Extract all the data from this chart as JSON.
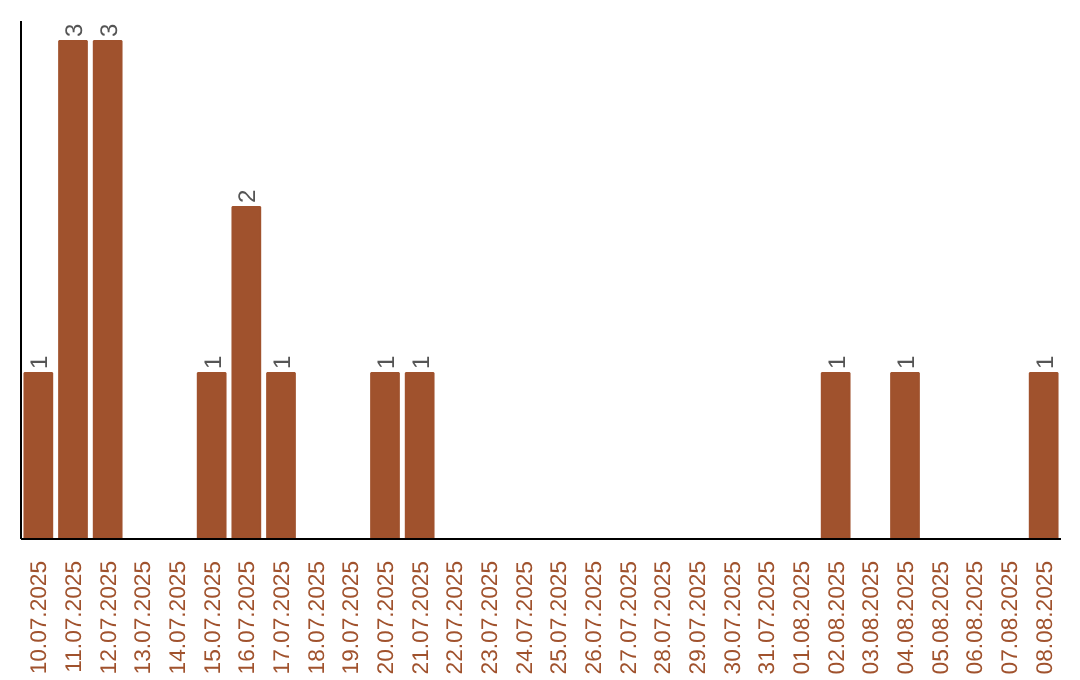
{
  "chart_data": {
    "type": "bar",
    "categories": [
      "10.07.2025",
      "11.07.2025",
      "12.07.2025",
      "13.07.2025",
      "14.07.2025",
      "15.07.2025",
      "16.07.2025",
      "17.07.2025",
      "18.07.2025",
      "19.07.2025",
      "20.07.2025",
      "21.07.2025",
      "22.07.2025",
      "23.07.2025",
      "24.07.2025",
      "25.07.2025",
      "26.07.2025",
      "27.07.2025",
      "28.07.2025",
      "29.07.2025",
      "30.07.2025",
      "31.07.2025",
      "01.08.2025",
      "02.08.2025",
      "03.08.2025",
      "04.08.2025",
      "05.08.2025",
      "06.08.2025",
      "07.08.2025",
      "08.08.2025"
    ],
    "values": [
      1,
      3,
      3,
      0,
      0,
      1,
      2,
      1,
      0,
      0,
      1,
      1,
      0,
      0,
      0,
      0,
      0,
      0,
      0,
      0,
      0,
      0,
      0,
      1,
      0,
      1,
      0,
      0,
      0,
      1
    ],
    "value_labels": [
      "1",
      "3",
      "3",
      null,
      null,
      "1",
      "2",
      "1",
      null,
      null,
      "1",
      "1",
      null,
      null,
      null,
      null,
      null,
      null,
      null,
      null,
      null,
      null,
      null,
      "1",
      null,
      "1",
      null,
      null,
      null,
      "1"
    ],
    "color": "#a0522d",
    "ylim": [
      0,
      3.12
    ],
    "tick_labels": "x",
    "grid": false
  }
}
